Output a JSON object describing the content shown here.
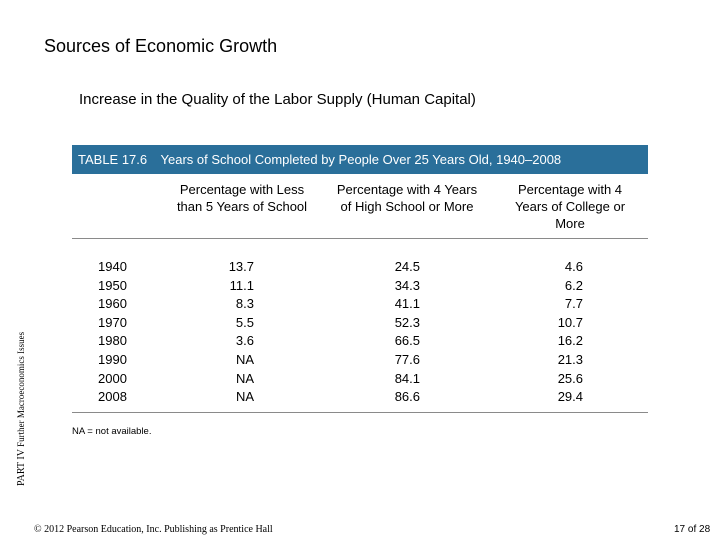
{
  "slide": {
    "title": "Sources of Economic Growth",
    "subtitle": "Increase in the Quality of the Labor Supply (Human Capital)"
  },
  "side_label": {
    "part": "PART IV",
    "section": "Further Macroeconomics Issues"
  },
  "table": {
    "number": "TABLE 17.6",
    "caption": "Years of School Completed by People Over 25 Years Old, 1940–2008",
    "columns": [
      "Percentage with Less than 5 Years of School",
      "Percentage with 4 Years of High School or More",
      "Percentage with 4 Years of College or More"
    ],
    "years": [
      "1940",
      "1950",
      "1960",
      "1970",
      "1980",
      "1990",
      "2000",
      "2008"
    ],
    "less_than_5": [
      "13.7",
      "11.1",
      "8.3",
      "5.5",
      "3.6",
      "NA",
      "NA",
      "NA"
    ],
    "high_school": [
      "24.5",
      "34.3",
      "41.1",
      "52.3",
      "66.5",
      "77.6",
      "84.1",
      "86.6"
    ],
    "college": [
      "4.6",
      "6.2",
      "7.7",
      "10.7",
      "16.2",
      "21.3",
      "25.6",
      "29.4"
    ],
    "note": "NA = not available."
  },
  "footer": {
    "copyright": "© 2012 Pearson Education, Inc. Publishing as Prentice Hall",
    "page": "17 of 28"
  }
}
